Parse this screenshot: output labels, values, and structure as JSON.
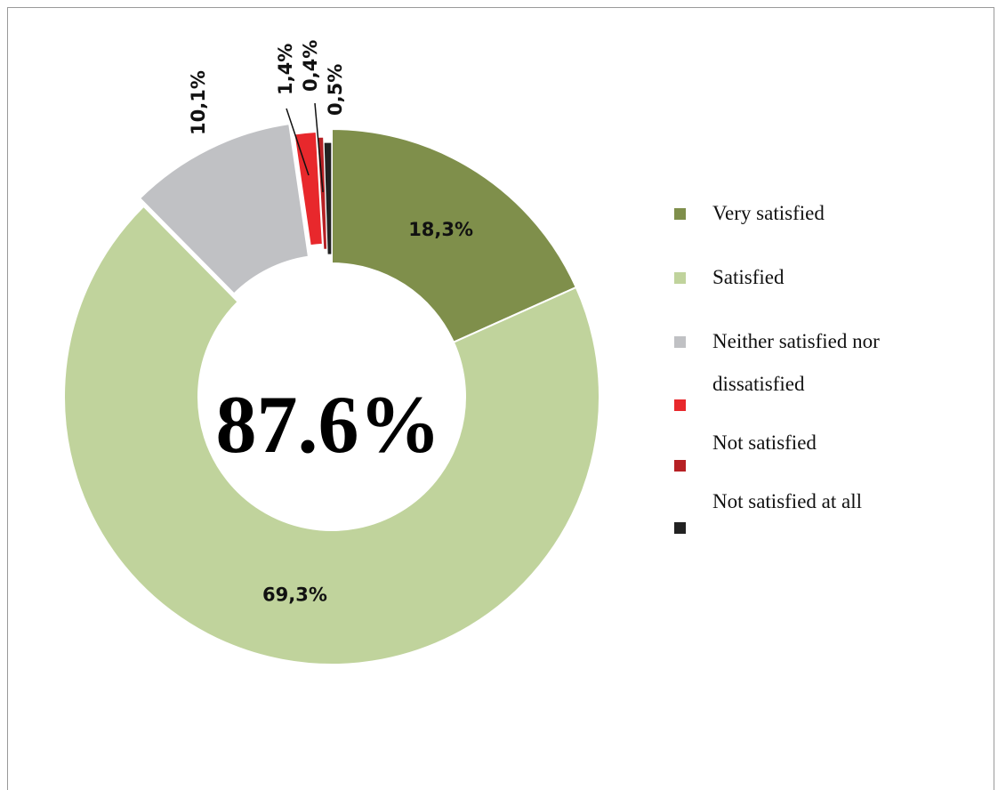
{
  "chart_data": {
    "type": "pie",
    "variant": "donut",
    "center_label": "87.6%",
    "title": "",
    "categories": [
      "Very satisfied",
      "Satisfied",
      "Neither satisfied nor dissatisfied",
      "Not satisfied",
      "Not satisfied at all"
    ],
    "slices": [
      {
        "label": "Very satisfied",
        "value": 18.3,
        "value_label": "18,3%",
        "color": "#7f8f4b"
      },
      {
        "label": "Satisfied",
        "value": 69.3,
        "value_label": "69,3%",
        "color": "#c0d39c"
      },
      {
        "label": "Neither satisfied nor dissatisfied",
        "value": 10.1,
        "value_label": "10,1%",
        "color": "#c0c1c4"
      },
      {
        "label": "",
        "value": 1.4,
        "value_label": "1,4%",
        "color": "#e8282c"
      },
      {
        "label": "Not satisfied",
        "value": 0.4,
        "value_label": "0,4%",
        "color": "#b62024"
      },
      {
        "label": "Not satisfied at all",
        "value": 0.5,
        "value_label": "0,5%",
        "color": "#222222"
      }
    ],
    "legend": {
      "position": "right",
      "items": [
        {
          "label": "Very satisfied",
          "color": "#7f8f4b"
        },
        {
          "label": "Satisfied",
          "color": "#c0d39c"
        },
        {
          "label": "Neither satisfied nor dissatisfied",
          "color": "#c0c1c4"
        },
        {
          "label": "",
          "color": "#e8282c"
        },
        {
          "label": "Not satisfied",
          "color": "#b62024"
        },
        {
          "label": "Not satisfied at all",
          "color": "#222222"
        }
      ]
    }
  }
}
